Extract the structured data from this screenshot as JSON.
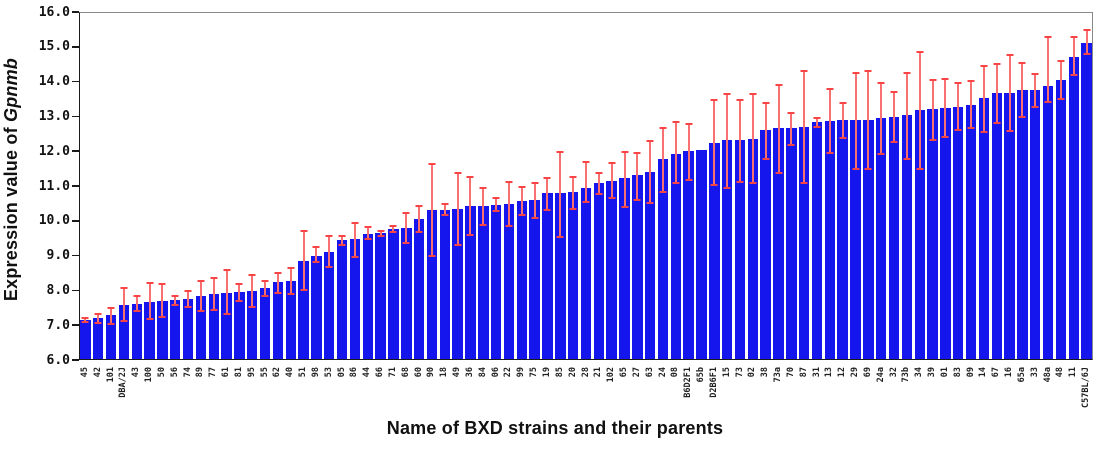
{
  "chart_data": {
    "type": "bar",
    "title": "",
    "xlabel": "Name of BXD strains and their parents",
    "ylabel_prefix": "Expression value of ",
    "ylabel_gene": "Gpnmb",
    "ylim": [
      6.0,
      16.0
    ],
    "ytick_interval": 1.0,
    "ytick_labels": [
      "16.0",
      "15.0",
      "14.0",
      "13.0",
      "12.0",
      "11.0",
      "10.0",
      "9.0",
      "8.0",
      "7.0",
      "6.0"
    ],
    "grid": "off",
    "legend": "none",
    "bar_color": "#1515ee",
    "error_line_color": "#f97070",
    "error_cap_color": "#f84444",
    "axis_color": "#1a1a1a",
    "categories": [
      "45",
      "42",
      "101",
      "DBA/2J",
      "43",
      "100",
      "50",
      "56",
      "74",
      "89",
      "77",
      "61",
      "81",
      "95",
      "55",
      "62",
      "40",
      "51",
      "98",
      "53",
      "05",
      "86",
      "44",
      "66",
      "71",
      "68",
      "60",
      "90",
      "18",
      "49",
      "36",
      "84",
      "06",
      "22",
      "99",
      "75",
      "19",
      "85",
      "20",
      "28",
      "21",
      "102",
      "65",
      "27",
      "63",
      "24",
      "08",
      "B6D2F1",
      "65b",
      "D2B6F1",
      "15",
      "73",
      "02",
      "38",
      "73a",
      "70",
      "87",
      "31",
      "13",
      "12",
      "29",
      "69",
      "24a",
      "32",
      "73b",
      "34",
      "39",
      "01",
      "83",
      "09",
      "14",
      "67",
      "16",
      "65a",
      "33",
      "48a",
      "48",
      "11",
      "C57BL/6J"
    ],
    "values": [
      7.15,
      7.2,
      7.28,
      7.58,
      7.6,
      7.68,
      7.7,
      7.72,
      7.76,
      7.84,
      7.9,
      7.93,
      7.96,
      7.98,
      8.06,
      8.23,
      8.27,
      8.85,
      9.0,
      9.1,
      9.44,
      9.47,
      9.62,
      9.65,
      9.77,
      9.8,
      10.04,
      10.31,
      10.32,
      10.34,
      10.42,
      10.42,
      10.46,
      10.49,
      10.58,
      10.61,
      10.79,
      10.79,
      10.82,
      10.94,
      11.08,
      11.15,
      11.22,
      11.31,
      11.39,
      11.77,
      11.93,
      12.01,
      12.04,
      12.25,
      12.31,
      12.31,
      12.34,
      12.6,
      12.66,
      12.66,
      12.69,
      12.85,
      12.87,
      12.89,
      12.89,
      12.9,
      12.95,
      12.99,
      13.03,
      13.17,
      13.2,
      13.23,
      13.28,
      13.33,
      13.52,
      13.68,
      13.68,
      13.76,
      13.76,
      13.87,
      14.06,
      14.72,
      15.12
    ],
    "error_up": [
      0.1,
      0.14,
      0.24,
      0.52,
      0.26,
      0.56,
      0.5,
      0.16,
      0.26,
      0.45,
      0.49,
      0.68,
      0.25,
      0.5,
      0.24,
      0.3,
      0.41,
      0.89,
      0.28,
      0.5,
      0.15,
      0.5,
      0.22,
      0.09,
      0.1,
      0.45,
      0.42,
      1.35,
      0.2,
      1.07,
      0.86,
      0.54,
      0.22,
      0.66,
      0.41,
      0.51,
      0.46,
      1.22,
      0.47,
      0.78,
      0.33,
      0.53,
      0.79,
      0.67,
      0.93,
      0.93,
      0.94,
      0.79,
      0.0,
      1.24,
      1.37,
      1.2,
      1.34,
      0.82,
      1.27,
      0.47,
      1.65,
      0.14,
      0.95,
      0.52,
      1.4,
      1.44,
      1.03,
      0.73,
      1.26,
      1.72,
      0.88,
      0.88,
      0.7,
      0.72,
      0.96,
      0.85,
      1.11,
      0.79,
      0.5,
      1.43,
      0.57,
      0.6,
      0.38
    ],
    "error_down": [
      0.1,
      0.16,
      0.27,
      0.5,
      0.22,
      0.54,
      0.5,
      0.16,
      0.27,
      0.47,
      0.49,
      0.64,
      0.28,
      0.49,
      0.24,
      0.32,
      0.41,
      0.88,
      0.22,
      0.47,
      0.16,
      0.54,
      0.18,
      0.11,
      0.11,
      0.46,
      0.4,
      1.35,
      0.18,
      1.06,
      0.86,
      0.56,
      0.21,
      0.67,
      0.43,
      0.57,
      0.5,
      1.29,
      0.52,
      0.42,
      0.34,
      0.52,
      0.86,
      0.73,
      0.9,
      0.97,
      0.88,
      0.86,
      0.0,
      1.24,
      1.4,
      1.21,
      1.29,
      0.86,
      1.32,
      0.51,
      1.63,
      0.18,
      0.94,
      0.55,
      1.42,
      1.45,
      1.05,
      0.76,
      1.28,
      1.7,
      0.92,
      0.86,
      0.7,
      0.7,
      0.99,
      0.9,
      1.12,
      0.82,
      0.52,
      0.48,
      0.6,
      0.57,
      0.35
    ]
  },
  "layout_note": ""
}
